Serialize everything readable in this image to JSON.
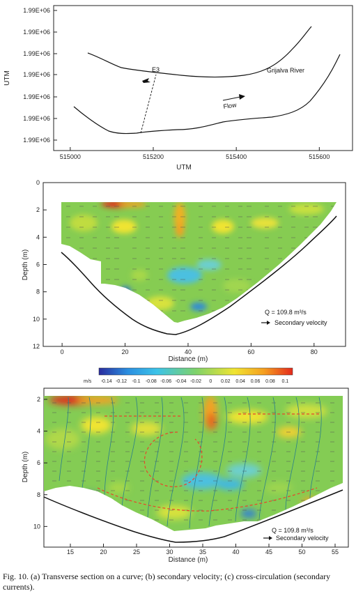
{
  "caption": "Fig. 10. (a) Transverse section on a curve; (b) secondary velocity; (c) cross-circulation (secondary currents).",
  "chart_data": [
    {
      "type": "line",
      "panel": "a",
      "xlabel": "UTM",
      "ylabel": "UTM",
      "xticks": [
        "515000",
        "515200",
        "515400",
        "515600"
      ],
      "yticks": [
        "1.99E+06",
        "1.99E+06",
        "1.99E+06",
        "1.99E+06",
        "1.99E+06",
        "1.99E+06",
        "1.99E+06"
      ],
      "xlim": [
        514960,
        515680
      ],
      "annotations": {
        "station": "E3",
        "river": "Grijalva River",
        "flow": "Flow"
      }
    },
    {
      "type": "heatmap",
      "panel": "b",
      "xlabel": "Distance (m)",
      "ylabel": "Depth (m)",
      "xticks": [
        "0",
        "20",
        "40",
        "60",
        "80"
      ],
      "yticks": [
        "0",
        "2",
        "4",
        "6",
        "8",
        "10",
        "12"
      ],
      "xlim": [
        -6,
        90
      ],
      "ylim": [
        12,
        0
      ],
      "annotations": {
        "discharge": "Q = 109.8 m³/s",
        "legend": "Secondary velocity"
      }
    },
    {
      "type": "colorbar",
      "unit": "m/s",
      "ticks": [
        "-0.14",
        "-0.12",
        "-0.1",
        "-0.08",
        "-0.06",
        "-0.04",
        "-0.02",
        "0",
        "0.02",
        "0.04",
        "0.06",
        "0.08",
        "0.1"
      ],
      "range": [
        -0.15,
        0.11
      ],
      "colors": [
        "#2a2c9e",
        "#2b8fe0",
        "#3cc3e8",
        "#7ed26a",
        "#f0e432",
        "#f5a020",
        "#e42a1c"
      ]
    },
    {
      "type": "heatmap",
      "panel": "c",
      "xlabel": "Distance (m)",
      "ylabel": "Depth (m)",
      "xticks": [
        "15",
        "20",
        "25",
        "30",
        "35",
        "40",
        "45",
        "50",
        "55"
      ],
      "yticks": [
        "2",
        "4",
        "6",
        "8",
        "10"
      ],
      "xlim": [
        11,
        57
      ],
      "ylim": [
        11.3,
        1.3
      ],
      "annotations": {
        "discharge": "Q = 109.8 m³/s",
        "legend": "Secondary velocity"
      }
    }
  ]
}
